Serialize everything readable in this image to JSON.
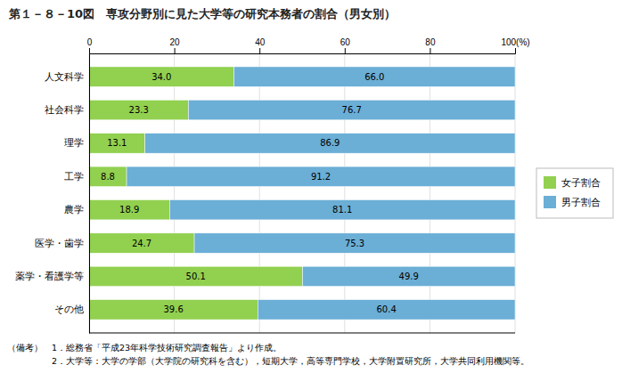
{
  "chart_data": {
    "type": "bar",
    "orientation": "horizontal",
    "stacked": true,
    "data_labels": true,
    "grid": true,
    "legend": "right",
    "title": "第１－８－10図　専攻分野別に見た大学等の研究本務者の割合（男女別）",
    "categories": [
      "人文科学",
      "社会科学",
      "理学",
      "工学",
      "農学",
      "医学・歯学",
      "薬学・看護学等",
      "その他"
    ],
    "series": [
      {
        "name": "女子割合",
        "color": "#92d050",
        "values": [
          34.0,
          23.3,
          13.1,
          8.8,
          18.9,
          24.7,
          50.1,
          39.6
        ],
        "value_labels": [
          "34.0",
          "23.3",
          "13.1",
          "8.8",
          "18.9",
          "24.7",
          "50.1",
          "39.6"
        ]
      },
      {
        "name": "男子割合",
        "color": "#6baed6",
        "values": [
          66.0,
          76.7,
          86.9,
          91.2,
          81.1,
          75.3,
          49.9,
          60.4
        ],
        "value_labels": [
          "66.0",
          "76.7",
          "86.9",
          "91.2",
          "81.1",
          "75.3",
          "49.9",
          "60.4"
        ]
      }
    ],
    "xlim": [
      0,
      100
    ],
    "xticks": [
      0,
      20,
      40,
      60,
      80,
      {
        "value": 100,
        "label": "100(%)"
      }
    ],
    "annotations": [
      "（備考）　1．総務省「平成23年科学技術研究調査報告」より作成。",
      "　　　　　2．大学等：大学の学部（大学院の研究科を含む），短期大学，高等専門学校，大学附置研究所，大学共同利用機関等。"
    ]
  }
}
